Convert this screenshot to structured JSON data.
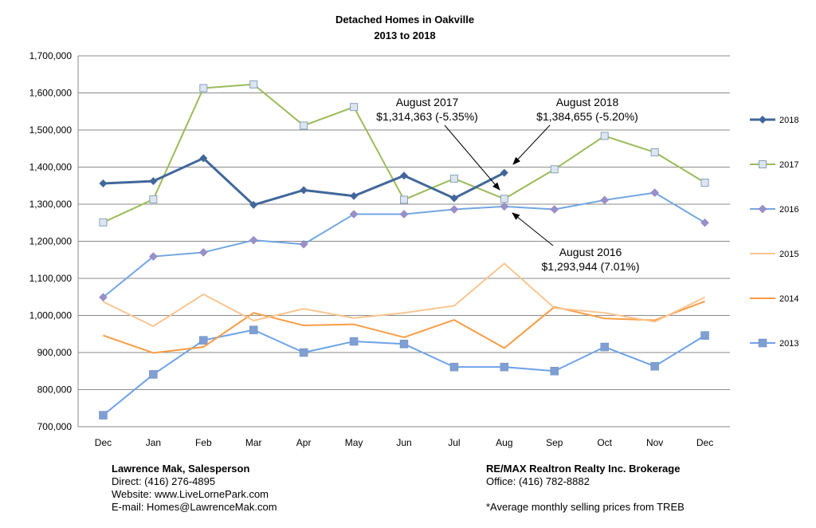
{
  "chart_data": {
    "type": "line",
    "title_line1": "Detached Homes in Oakville",
    "title_line2": "2013 to 2018",
    "categories": [
      "Dec",
      "Jan",
      "Feb",
      "Mar",
      "Apr",
      "May",
      "Jun",
      "Jul",
      "Aug",
      "Sep",
      "Oct",
      "Nov",
      "Dec"
    ],
    "ylim": [
      700000,
      1700000
    ],
    "yticks": [
      700000,
      800000,
      900000,
      1000000,
      1100000,
      1200000,
      1300000,
      1400000,
      1500000,
      1600000,
      1700000
    ],
    "ytick_labels": [
      "700,000",
      "800,000",
      "900,000",
      "1,000,000",
      "1,100,000",
      "1,200,000",
      "1,300,000",
      "1,400,000",
      "1,500,000",
      "1,600,000",
      "1,700,000"
    ],
    "grid": true,
    "legend_position": "right",
    "series": [
      {
        "name": "2018",
        "color": "#41679a",
        "marker": "diamond",
        "width": 3,
        "values": [
          1356000,
          1362000,
          1424000,
          1298000,
          1338000,
          1322000,
          1377000,
          1316000,
          1384655,
          null,
          null,
          null,
          null
        ]
      },
      {
        "name": "2017",
        "color": "#9bbb59",
        "marker": "square-light",
        "width": 2,
        "values": [
          1251000,
          1313000,
          1613000,
          1623000,
          1512000,
          1562000,
          1312000,
          1369000,
          1314363,
          1394000,
          1484000,
          1440000,
          1358000
        ]
      },
      {
        "name": "2016",
        "color": "#72a7e0",
        "marker": "diamond-purple",
        "width": 2,
        "values": [
          1049000,
          1159000,
          1170000,
          1203000,
          1192000,
          1273000,
          1273000,
          1286000,
          1293944,
          1286000,
          1311000,
          1331000,
          1250000
        ]
      },
      {
        "name": "2015",
        "color": "#fac591",
        "marker": "none",
        "width": 2,
        "values": [
          1037000,
          971000,
          1057000,
          986000,
          1018000,
          993000,
          1007000,
          1026000,
          1140000,
          1020000,
          1007000,
          983000,
          1049000
        ]
      },
      {
        "name": "2014",
        "color": "#f79d45",
        "marker": "none",
        "width": 2,
        "values": [
          946000,
          899000,
          915000,
          1007000,
          973000,
          976000,
          941000,
          988000,
          912000,
          1023000,
          992000,
          987000,
          1038000
        ]
      },
      {
        "name": "2013",
        "color": "#6ea2e8",
        "marker": "square",
        "width": 2,
        "values": [
          731000,
          841000,
          933000,
          961000,
          900000,
          930000,
          923000,
          861000,
          861000,
          850000,
          915000,
          863000,
          946000
        ]
      }
    ],
    "annotations": [
      {
        "line1": "August 2017",
        "line2": "$1,314,363 (-5.35%)"
      },
      {
        "line1": "August 2018",
        "line2": "$1,384,655  (-5.20%)"
      },
      {
        "line1": "August 2016",
        "line2": "$1,293,944 (7.01%)"
      }
    ]
  },
  "footer": {
    "left": {
      "name": "Lawrence Mak, Salesperson",
      "direct": "Direct:  (416) 276-4895",
      "website": "Website:  www.LiveLornePark.com",
      "email": "E-mail:  Homes@LawrenceMak.com"
    },
    "right": {
      "name": "RE/MAX Realtron Realty Inc. Brokerage",
      "office": "Office: (416) 782-8882",
      "note": "*Average monthly selling prices from TREB"
    }
  }
}
